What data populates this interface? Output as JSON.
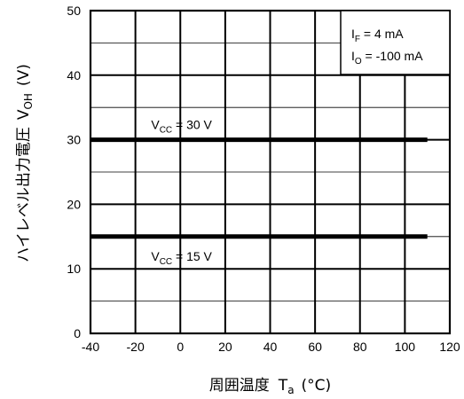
{
  "chart_data": {
    "type": "line",
    "xlabel": {
      "main": "周囲温度",
      "sym": "T",
      "sub": "a",
      "unit": "(°C)"
    },
    "ylabel": {
      "main": "ハイレベル出力電圧",
      "sym": "V",
      "sub": "OH",
      "unit": "(V)"
    },
    "xlim": [
      -40,
      120
    ],
    "ylim": [
      0,
      50
    ],
    "x_ticks": [
      "-40",
      "-20",
      "0",
      "20",
      "40",
      "60",
      "80",
      "100",
      "120"
    ],
    "y_ticks": [
      "0",
      "10",
      "20",
      "30",
      "40",
      "50"
    ],
    "grid": true,
    "series": [
      {
        "label_sym": "V",
        "label_sub": "CC",
        "label_val": " = 30 V",
        "x": [
          -40,
          110
        ],
        "y": [
          30,
          30
        ]
      },
      {
        "label_sym": "V",
        "label_sub": "CC",
        "label_val": " = 15 V",
        "x": [
          -40,
          110
        ],
        "y": [
          15,
          15
        ]
      }
    ],
    "conditions": [
      {
        "sym": "I",
        "sub": "F",
        "val": " = 4 mA"
      },
      {
        "sym": "I",
        "sub": "O",
        "val": " = -100 mA"
      }
    ],
    "legend_position": "top-right"
  }
}
